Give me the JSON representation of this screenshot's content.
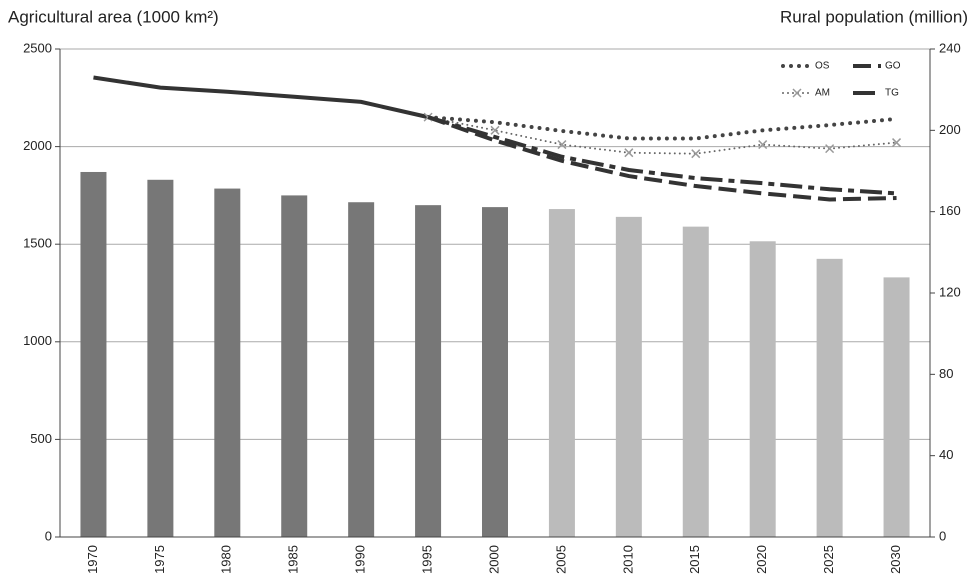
{
  "chart_data": {
    "type": "bar",
    "ylabel": "Agricultural area (1000 km²)",
    "y2label": "Rural population (million)",
    "categories": [
      "1970",
      "1975",
      "1980",
      "1985",
      "1990",
      "1995",
      "2000",
      "2005",
      "2010",
      "2015",
      "2020",
      "2025",
      "2030"
    ],
    "values": [
      1870,
      1830,
      1785,
      1750,
      1715,
      1700,
      1690,
      1680,
      1640,
      1590,
      1515,
      1425,
      1330
    ],
    "colors": [
      "#777777",
      "#777777",
      "#777777",
      "#777777",
      "#777777",
      "#777777",
      "#777777",
      "#bbbbbb",
      "#bbbbbb",
      "#bbbbbb",
      "#bbbbbb",
      "#bbbbbb",
      "#bbbbbb"
    ],
    "ylim": [
      0,
      2500
    ],
    "yticks": [
      0,
      500,
      1000,
      1500,
      2000,
      2500
    ],
    "y2lim": [
      0,
      240
    ],
    "y2ticks": [
      0,
      40,
      80,
      120,
      160,
      200,
      240
    ],
    "grid": true,
    "legend": "upper right",
    "lines": [
      {
        "type": "line",
        "axis": "y2",
        "color": "#333333",
        "style": "solid",
        "values": [
          226,
          221,
          219,
          216.5,
          214,
          206.5,
          null,
          null,
          null,
          null,
          null,
          null,
          null
        ]
      },
      {
        "type": "line",
        "axis": "y2",
        "name": "OS",
        "color": "#444444",
        "style": "dotted",
        "values": [
          null,
          null,
          null,
          null,
          null,
          206.5,
          204,
          199.7,
          196,
          196,
          200,
          202.6,
          205.6
        ]
      },
      {
        "type": "line",
        "axis": "y2",
        "name": "GO",
        "color": "#333333",
        "style": "dashed",
        "values": [
          null,
          null,
          null,
          null,
          null,
          206.5,
          195,
          185,
          177.5,
          172.6,
          169,
          166,
          166.7
        ]
      },
      {
        "type": "line",
        "axis": "y2",
        "name": "AM",
        "color": "#666666",
        "style": "dotted-x",
        "values": [
          null,
          null,
          null,
          null,
          null,
          206.5,
          200,
          193,
          189,
          188.5,
          193,
          191,
          194
        ]
      },
      {
        "type": "line",
        "axis": "y2",
        "name": "TG",
        "color": "#333333",
        "style": "dash-dot",
        "values": [
          null,
          null,
          null,
          null,
          null,
          206.5,
          196.7,
          187,
          180.5,
          176.5,
          174,
          171,
          169
        ]
      }
    ]
  }
}
